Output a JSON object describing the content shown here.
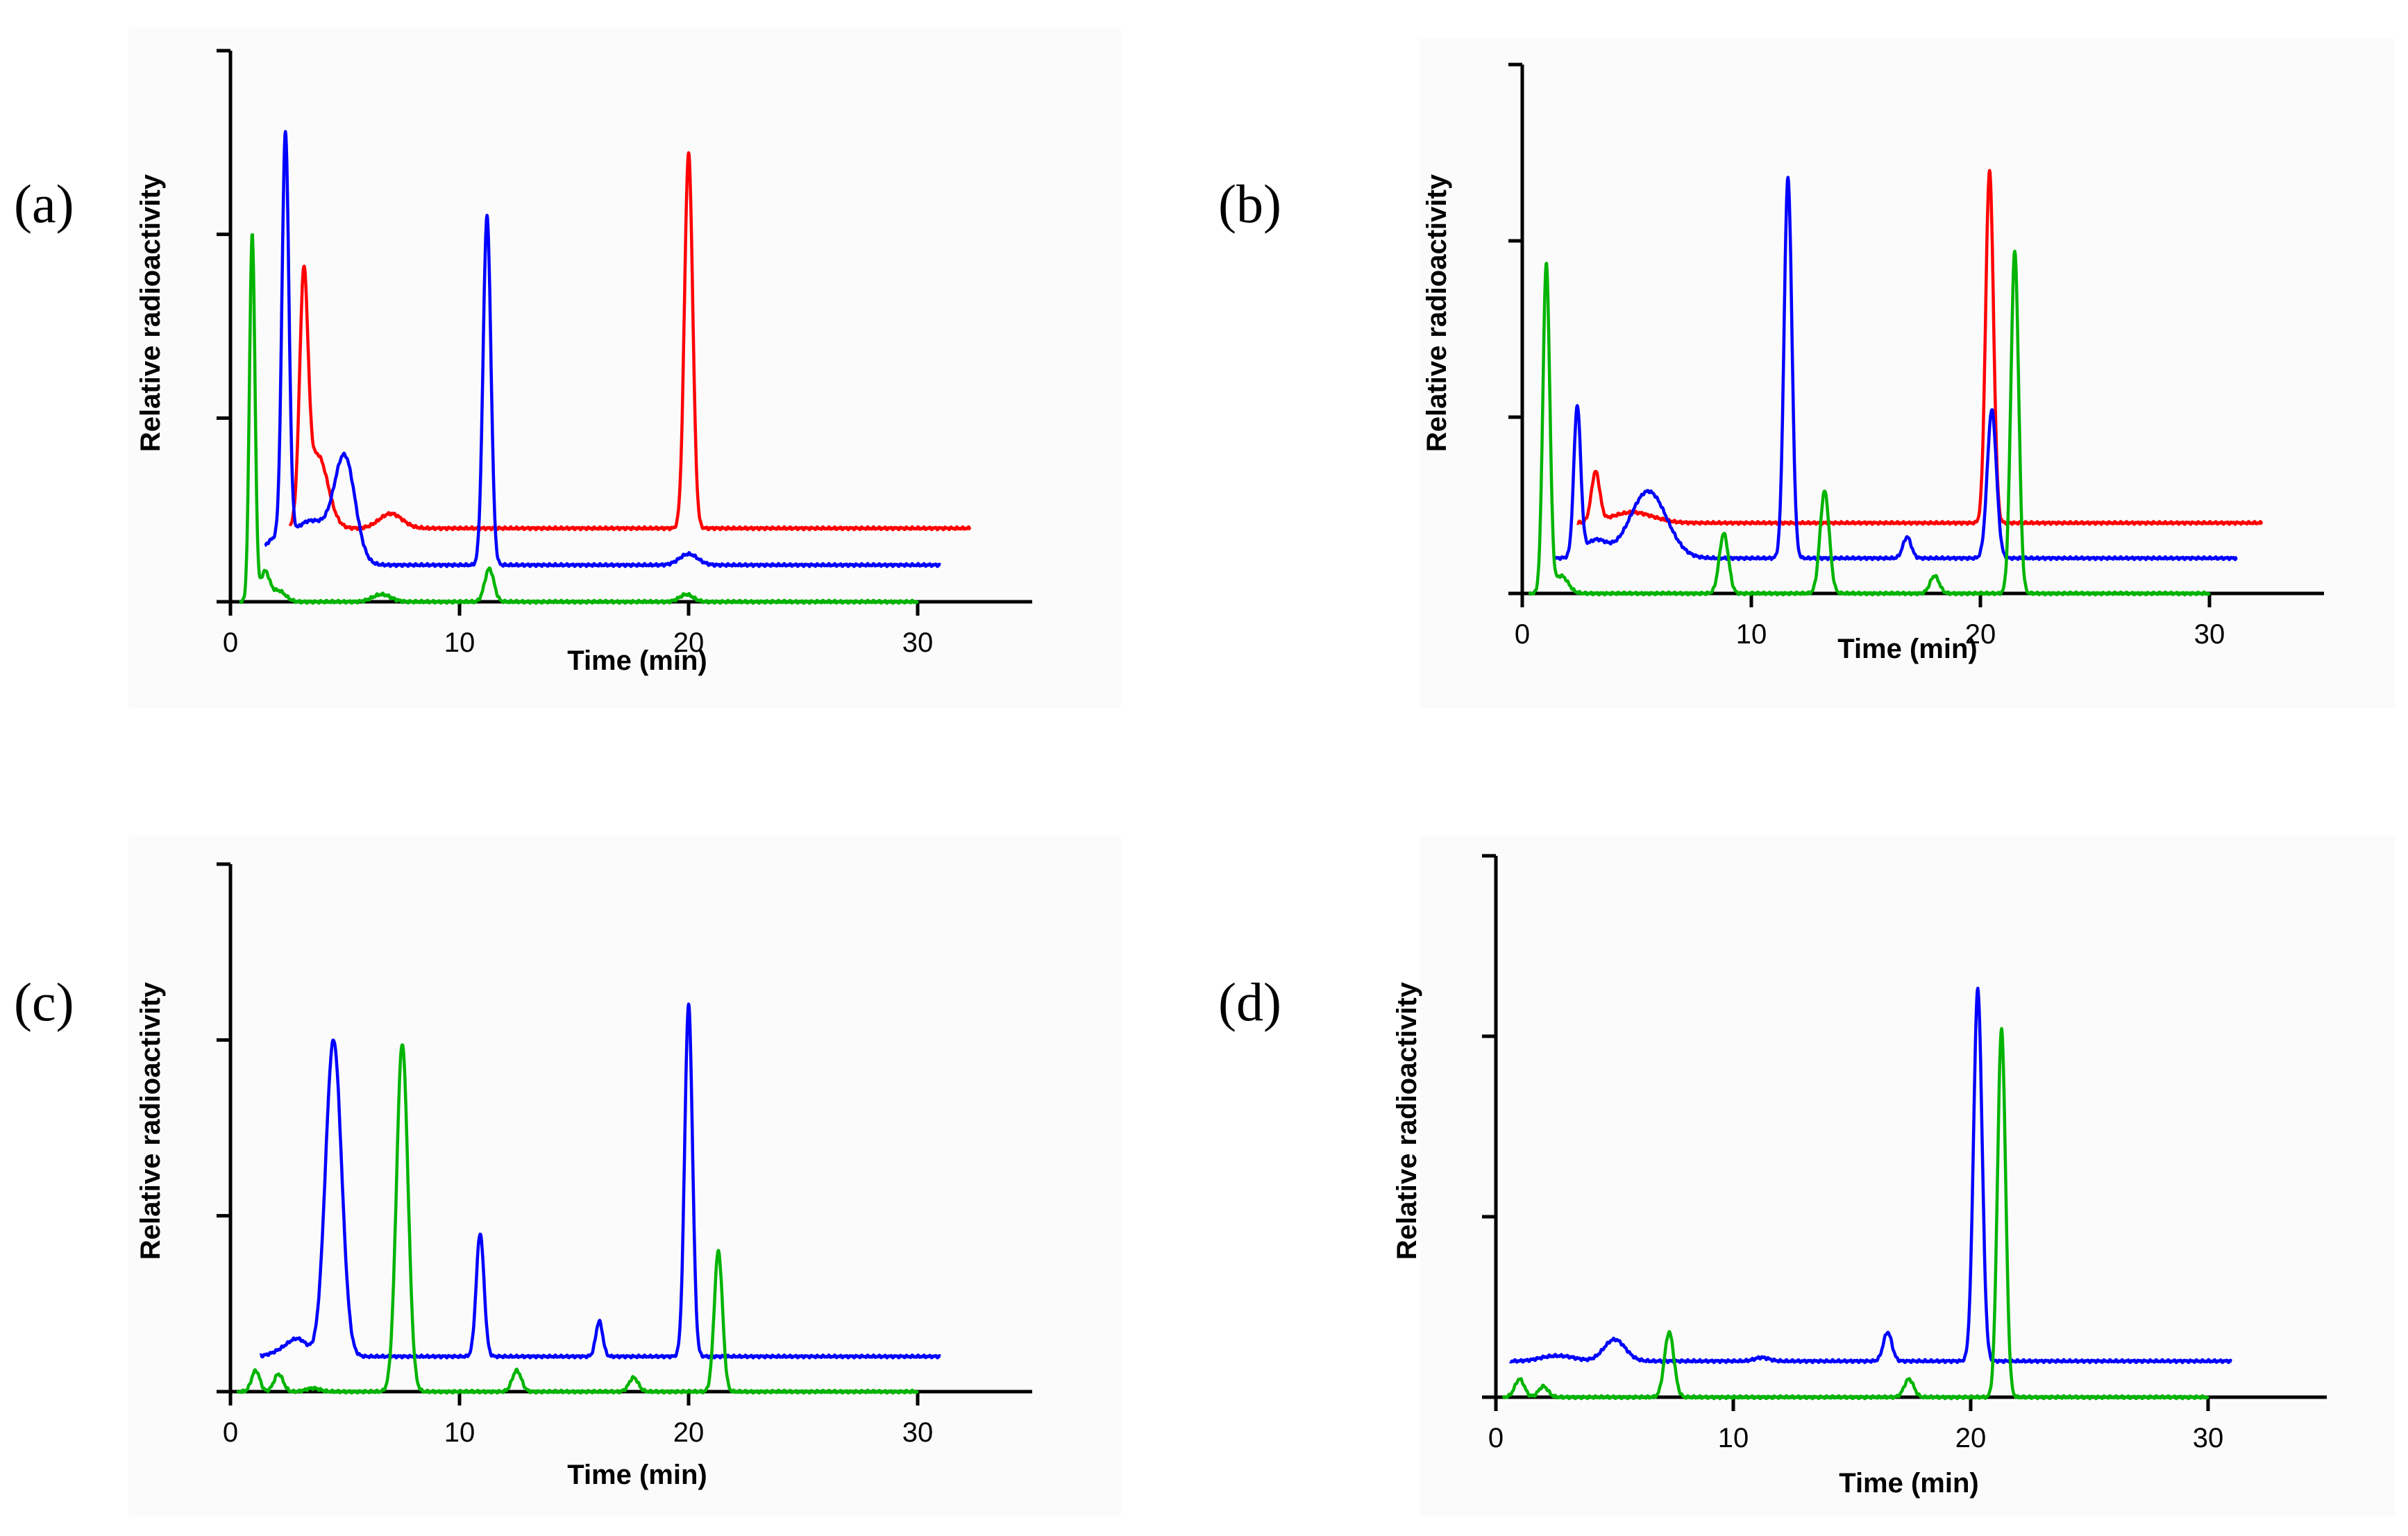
{
  "figure": {
    "background": "#ffffff",
    "panel_background": "#fbfbfb"
  },
  "colors": {
    "red": "#ff0000",
    "blue": "#0000ff",
    "green": "#00b400",
    "axis": "#000000"
  },
  "chart_data": [
    {
      "panel_label": "(a)",
      "type": "line",
      "xlabel": "Time (min)",
      "ylabel": "Relative radioactivity",
      "xlim": [
        0,
        35
      ],
      "ylim": [
        0,
        1.5
      ],
      "xticks": [
        0,
        10,
        20,
        30
      ],
      "yticks": [
        0,
        0.5,
        1.0,
        1.5
      ],
      "series": [
        {
          "name": "red",
          "color": "#ff0000",
          "x_start": 2.6,
          "x_end": 32.3,
          "baseline": 0.2,
          "peaks": [
            [
              3.2,
              0.63,
              0.18
            ],
            [
              3.8,
              0.2,
              0.45
            ],
            [
              7.0,
              0.04,
              0.5
            ],
            [
              20.0,
              1.02,
              0.18
            ]
          ]
        },
        {
          "name": "blue",
          "color": "#0000ff",
          "x_start": 1.5,
          "x_end": 31.0,
          "baseline": 0.1,
          "peaks": [
            [
              1.8,
              0.05,
              0.5
            ],
            [
              2.4,
              1.1,
              0.15
            ],
            [
              3.5,
              0.12,
              0.9
            ],
            [
              5.0,
              0.27,
              0.45
            ],
            [
              11.2,
              0.95,
              0.17
            ],
            [
              20.0,
              0.03,
              0.4
            ]
          ]
        },
        {
          "name": "green",
          "color": "#00b400",
          "x_start": 0.4,
          "x_end": 30.0,
          "baseline": 0.0,
          "peaks": [
            [
              0.95,
              1.0,
              0.12
            ],
            [
              1.5,
              0.08,
              0.2
            ],
            [
              2.1,
              0.03,
              0.3
            ],
            [
              6.6,
              0.02,
              0.4
            ],
            [
              11.3,
              0.09,
              0.2
            ],
            [
              19.9,
              0.02,
              0.3
            ]
          ]
        }
      ]
    },
    {
      "panel_label": "(b)",
      "type": "line",
      "xlabel": "Time (min)",
      "ylabel": "Relative radioactivity",
      "xlim": [
        0,
        35
      ],
      "ylim": [
        0,
        1.5
      ],
      "xticks": [
        0,
        10,
        20,
        30
      ],
      "yticks": [
        0,
        0.5,
        1.0,
        1.5
      ],
      "series": [
        {
          "name": "red",
          "color": "#ff0000",
          "x_start": 2.4,
          "x_end": 32.3,
          "baseline": 0.2,
          "peaks": [
            [
              3.2,
              0.14,
              0.18
            ],
            [
              4.8,
              0.03,
              0.9
            ],
            [
              20.4,
              1.0,
              0.17
            ]
          ]
        },
        {
          "name": "blue",
          "color": "#0000ff",
          "x_start": 1.4,
          "x_end": 31.2,
          "baseline": 0.1,
          "peaks": [
            [
              2.4,
              0.42,
              0.15
            ],
            [
              3.2,
              0.05,
              0.5
            ],
            [
              5.5,
              0.19,
              0.8
            ],
            [
              11.6,
              1.08,
              0.17
            ],
            [
              16.8,
              0.06,
              0.18
            ],
            [
              20.5,
              0.42,
              0.2
            ]
          ]
        },
        {
          "name": "green",
          "color": "#00b400",
          "x_start": 0.3,
          "x_end": 30.0,
          "baseline": 0.0,
          "peaks": [
            [
              1.05,
              0.93,
              0.15
            ],
            [
              1.7,
              0.05,
              0.3
            ],
            [
              8.8,
              0.17,
              0.2
            ],
            [
              13.2,
              0.29,
              0.2
            ],
            [
              18.0,
              0.05,
              0.2
            ],
            [
              21.5,
              0.97,
              0.17
            ]
          ]
        }
      ]
    },
    {
      "panel_label": "(c)",
      "type": "line",
      "xlabel": "Time (min)",
      "ylabel": "Relative radioactivity",
      "xlim": [
        0,
        35
      ],
      "ylim": [
        0,
        1.5
      ],
      "xticks": [
        0,
        10,
        20,
        30
      ],
      "yticks": [
        0,
        0.5,
        1.0,
        1.5
      ],
      "series": [
        {
          "name": "blue",
          "color": "#0000ff",
          "x_start": 1.3,
          "x_end": 31.0,
          "baseline": 0.1,
          "peaks": [
            [
              2.4,
              0.02,
              0.5
            ],
            [
              3.0,
              0.04,
              0.4
            ],
            [
              4.5,
              0.9,
              0.35
            ],
            [
              10.9,
              0.35,
              0.17
            ],
            [
              16.1,
              0.1,
              0.15
            ],
            [
              20.0,
              1.0,
              0.17
            ]
          ]
        },
        {
          "name": "green",
          "color": "#00b400",
          "x_start": 0.3,
          "x_end": 30.0,
          "baseline": 0.0,
          "peaks": [
            [
              1.1,
              0.06,
              0.18
            ],
            [
              2.1,
              0.05,
              0.2
            ],
            [
              3.6,
              0.01,
              0.3
            ],
            [
              7.5,
              0.99,
              0.25
            ],
            [
              12.5,
              0.06,
              0.2
            ],
            [
              17.6,
              0.04,
              0.2
            ],
            [
              21.3,
              0.4,
              0.18
            ]
          ]
        }
      ]
    },
    {
      "panel_label": "(d)",
      "type": "line",
      "xlabel": "Time (min)",
      "ylabel": "Relative radioactivity",
      "xlim": [
        0,
        35
      ],
      "ylim": [
        0,
        1.5
      ],
      "xticks": [
        0,
        10,
        20,
        30
      ],
      "yticks": [
        0,
        0.5,
        1.0,
        1.5
      ],
      "series": [
        {
          "name": "blue",
          "color": "#0000ff",
          "x_start": 0.6,
          "x_end": 31.0,
          "baseline": 0.1,
          "peaks": [
            [
              2.2,
              0.01,
              0.5
            ],
            [
              3.0,
              0.01,
              0.5
            ],
            [
              5.0,
              0.06,
              0.45
            ],
            [
              11.2,
              0.01,
              0.3
            ],
            [
              16.5,
              0.08,
              0.18
            ],
            [
              20.3,
              1.03,
              0.18
            ]
          ]
        },
        {
          "name": "green",
          "color": "#00b400",
          "x_start": 0.3,
          "x_end": 30.0,
          "baseline": 0.0,
          "peaks": [
            [
              1.0,
              0.05,
              0.2
            ],
            [
              2.0,
              0.03,
              0.2
            ],
            [
              7.3,
              0.18,
              0.2
            ],
            [
              17.4,
              0.05,
              0.2
            ],
            [
              21.3,
              1.02,
              0.17
            ]
          ]
        }
      ]
    }
  ]
}
